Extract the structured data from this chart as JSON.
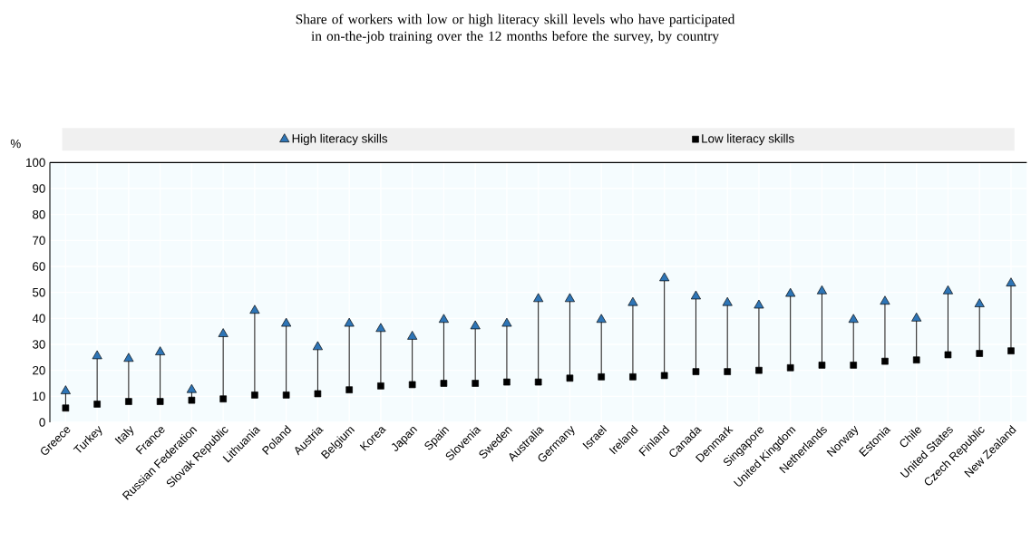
{
  "chart_data": {
    "type": "scatter",
    "title": "Share of workers with low or high literacy skill levels who have participated in on-the-job training over the 12 months before the survey, by country",
    "ylabel": "%",
    "categories": [
      "Greece",
      "Turkey",
      "Italy",
      "France",
      "Russian Federation",
      "Slovak Republic",
      "Lithuania",
      "Poland",
      "Austria",
      "Belgium",
      "Korea",
      "Japan",
      "Spain",
      "Slovenia",
      "Sweden",
      "Australia",
      "Germany",
      "Israel",
      "Ireland",
      "Finland",
      "Canada",
      "Denmark",
      "Singapore",
      "United Kingdom",
      "Netherlands",
      "Norway",
      "Estonia",
      "Chile",
      "United States",
      "Czech Republic",
      "New Zealand"
    ],
    "series": [
      {
        "name": "High literacy skills",
        "color": "#2e75b6",
        "marker": "triangle",
        "values": [
          12,
          25.5,
          24.5,
          27,
          12.5,
          34,
          43,
          38,
          29,
          38,
          36,
          33,
          39.5,
          37,
          38,
          47.5,
          47.5,
          39.5,
          46,
          55.5,
          48.5,
          46,
          45,
          49.5,
          50.5,
          39.5,
          46.5,
          40,
          50.5,
          45.5,
          53.5
        ]
      },
      {
        "name": "Low literacy skills",
        "color": "#000000",
        "marker": "square",
        "values": [
          5.5,
          7,
          8,
          8,
          8.5,
          9,
          10.5,
          10.5,
          11,
          12.5,
          14,
          14.5,
          15,
          15,
          15.5,
          15.5,
          17,
          17.5,
          17.5,
          18,
          19.5,
          19.5,
          20,
          21,
          22,
          22,
          23.5,
          24,
          26,
          26.5,
          27.5
        ]
      }
    ],
    "ylim": [
      0,
      100
    ],
    "yticks": [
      0,
      10,
      20,
      30,
      40,
      50,
      60,
      70,
      80,
      90,
      100
    ],
    "grid": true,
    "legend": "top"
  }
}
